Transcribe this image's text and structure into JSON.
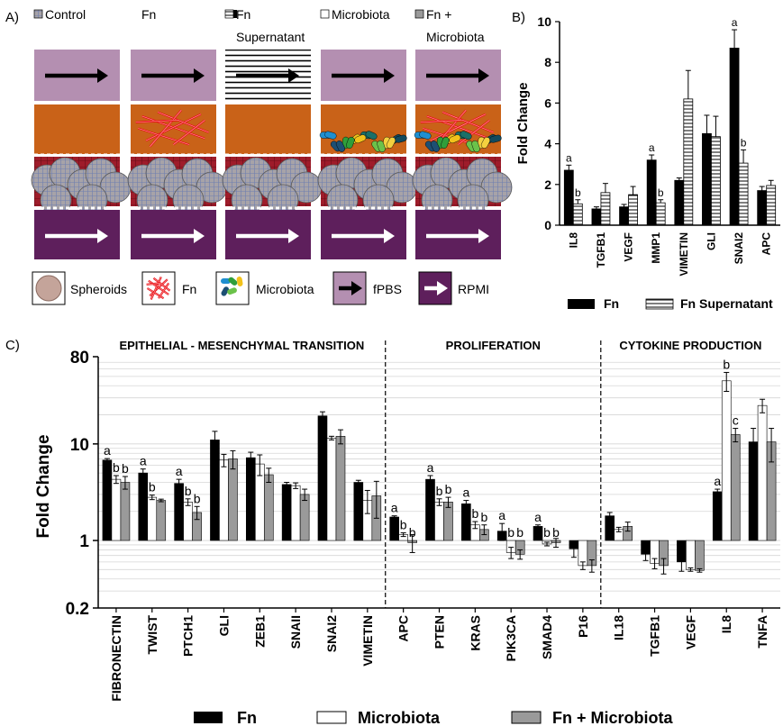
{
  "panel_labels": {
    "a": "A)",
    "b": "B)",
    "c": "C)"
  },
  "panel_a": {
    "columns": [
      {
        "legend": "Control",
        "legend2": "",
        "swatch": "control",
        "top": "plain",
        "middle": "plain"
      },
      {
        "legend": "Fn",
        "legend2": "",
        "swatch": "fn",
        "top": "plain",
        "middle": "fn"
      },
      {
        "legend": "Fn",
        "legend2": "Supernatant",
        "swatch": "stripes",
        "top": "stripes",
        "middle": "plain"
      },
      {
        "legend": "Microbiota",
        "legend2": "",
        "swatch": "microbiota",
        "top": "plain",
        "middle": "microbiota"
      },
      {
        "legend": "Fn +",
        "legend2": "Microbiota",
        "swatch": "gray",
        "top": "plain",
        "middle": "both"
      }
    ],
    "key": {
      "spheroids": "Spheroids",
      "fn": "Fn",
      "microbiota": "Microbiota",
      "fpbs": "fPBS",
      "rpmi": "RPMI"
    },
    "colors": {
      "fpbs": "#b48fb1",
      "rpmi": "#5e1f5c",
      "mucus": "#c96218",
      "tissue": "#9e1c2a",
      "spheroid": "#a7a3a8",
      "fn": "#e01a1a"
    }
  },
  "chart_data": [
    {
      "id": "B",
      "type": "bar",
      "ylabel": "Fold Change",
      "xlabel": "",
      "ylim": [
        0,
        10
      ],
      "yticks": [
        0,
        2,
        4,
        6,
        8,
        10
      ],
      "categories": [
        "IL8",
        "TGFB1",
        "VEGF",
        "MMP1",
        "VIMETIN",
        "GLI",
        "SNAI2",
        "APC"
      ],
      "series": [
        {
          "name": "Fn",
          "style": "solid",
          "values": [
            2.7,
            0.8,
            0.9,
            3.2,
            2.2,
            4.5,
            8.7,
            1.7
          ],
          "errors": [
            0.25,
            0.1,
            0.12,
            0.25,
            0.12,
            0.9,
            0.9,
            0.2
          ],
          "letters": [
            "a",
            "",
            "",
            "a",
            "",
            "",
            "a",
            ""
          ]
        },
        {
          "name": "Fn Supernatant",
          "style": "striped",
          "values": [
            1.05,
            1.6,
            1.5,
            1.1,
            6.2,
            4.35,
            3.05,
            1.95
          ],
          "errors": [
            0.2,
            0.45,
            0.4,
            0.15,
            1.4,
            1.0,
            0.65,
            0.25
          ],
          "letters": [
            "b",
            "",
            "",
            "b",
            "",
            "",
            "b",
            ""
          ]
        }
      ],
      "legend": {
        "fn": "Fn",
        "supernatant": "Fn Supernatant"
      }
    },
    {
      "id": "C",
      "type": "bar",
      "ylabel": "Fold Change",
      "xlabel": "",
      "yscale": "log",
      "ylim": [
        0.2,
        80
      ],
      "yticks": [
        0.2,
        1,
        10,
        80
      ],
      "groups": [
        {
          "title": "EPITHELIAL - MESENCHYMAL TRANSITION",
          "categories": [
            "FIBRONECTIN",
            "TWIST",
            "PTCH1",
            "GLI",
            "ZEB1",
            "SNAII",
            "SNAI2",
            "VIMETIN"
          ]
        },
        {
          "title": "PROLIFERATION",
          "categories": [
            "APC",
            "PTEN",
            "KRAS",
            "PIK3CA",
            "SMAD4",
            "P16"
          ]
        },
        {
          "title": "CYTOKINE PRODUCTION",
          "categories": [
            "IL18",
            "TGFB1",
            "VEGF",
            "IL8",
            "TNFA"
          ]
        }
      ],
      "series": [
        {
          "name": "Fn",
          "color": "#000000",
          "values": [
            6.8,
            5.0,
            3.9,
            11.0,
            7.2,
            3.8,
            19.5,
            4.0,
            1.75,
            4.3,
            2.4,
            1.25,
            1.4,
            0.82,
            1.8,
            0.72,
            0.6,
            3.2,
            10.5
          ],
          "errors": [
            0.25,
            0.5,
            0.4,
            2.5,
            1.0,
            0.2,
            2.0,
            0.2,
            0.05,
            0.4,
            0.2,
            0.25,
            0.05,
            0.15,
            0.15,
            0.1,
            0.12,
            0.2,
            4.0
          ],
          "letters": [
            "a",
            "a",
            "a",
            "",
            "",
            "",
            "",
            "",
            "a",
            "a",
            "a",
            "a",
            "a",
            "",
            "",
            "",
            "",
            "a",
            ""
          ]
        },
        {
          "name": "Microbiota",
          "color": "#ffffff",
          "values": [
            4.3,
            2.8,
            2.5,
            6.8,
            6.2,
            3.7,
            11.5,
            2.6,
            1.15,
            2.5,
            1.45,
            0.75,
            0.92,
            0.55,
            1.3,
            0.58,
            0.5,
            45.0,
            25.0
          ],
          "errors": [
            0.4,
            0.15,
            0.2,
            1.0,
            1.5,
            0.25,
            0.5,
            0.7,
            0.05,
            0.2,
            0.12,
            0.1,
            0.04,
            0.05,
            0.07,
            0.07,
            0.02,
            10.0,
            4.0
          ],
          "letters": [
            "b",
            "b",
            "b",
            "",
            "",
            "",
            "",
            "",
            "b",
            "b",
            "b",
            "b",
            "b",
            "",
            "",
            "",
            "",
            "b",
            ""
          ]
        },
        {
          "name": "Fn + Microbiota",
          "color": "#9a9a9a",
          "values": [
            4.0,
            2.6,
            1.95,
            7.0,
            4.8,
            3.0,
            12.0,
            2.9,
            0.95,
            2.5,
            1.3,
            0.72,
            0.95,
            0.55,
            1.4,
            0.55,
            0.49,
            12.5,
            10.5
          ],
          "errors": [
            0.6,
            0.08,
            0.3,
            1.5,
            0.8,
            0.4,
            2.0,
            1.2,
            0.2,
            0.3,
            0.15,
            0.08,
            0.1,
            0.08,
            0.15,
            0.1,
            0.02,
            2.0,
            4.0
          ],
          "letters": [
            "b",
            "",
            "b",
            "",
            "",
            "",
            "",
            "",
            "b",
            "b",
            "b",
            "b",
            "b",
            "",
            "",
            "",
            "",
            "c",
            ""
          ]
        }
      ],
      "legend": {
        "fn": "Fn",
        "microbiota": "Microbiota",
        "both": "Fn + Microbiota"
      }
    }
  ]
}
